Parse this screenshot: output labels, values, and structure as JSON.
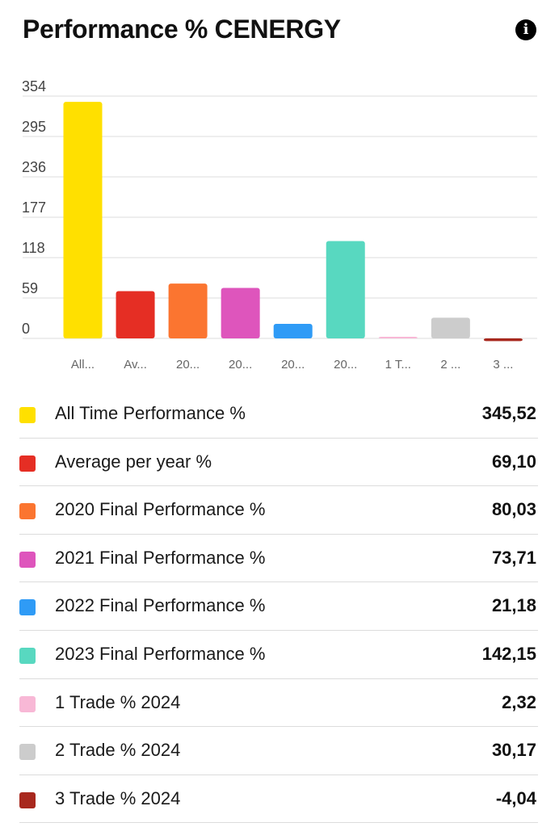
{
  "header": {
    "title": "Performance % CENERGY",
    "info_icon": "info-icon"
  },
  "chart_data": {
    "type": "bar",
    "title": "",
    "xlabel": "",
    "ylabel": "",
    "ylim": [
      -10,
      354
    ],
    "y_ticks": [
      "354",
      "295",
      "236",
      "177",
      "118",
      "59",
      "0"
    ],
    "y_tick_values": [
      354,
      295,
      236,
      177,
      118,
      59,
      0
    ],
    "grid": true,
    "categories": [
      "All...",
      "Av...",
      "20...",
      "20...",
      "20...",
      "20...",
      "1 T...",
      "2 ...",
      "3 ..."
    ],
    "values": [
      345.52,
      69.1,
      80.03,
      73.71,
      21.18,
      142.15,
      2.32,
      30.17,
      -4.04
    ],
    "colors": [
      "#FFE000",
      "#E52E24",
      "#FB7530",
      "#DE55BC",
      "#2F9BF6",
      "#58D8C0",
      "#F8B8D6",
      "#CCCCCC",
      "#A8281E"
    ]
  },
  "legend": [
    {
      "label": "All Time Performance %",
      "value": "345,52",
      "color": "#FFE000"
    },
    {
      "label": "Average per year %",
      "value": "69,10",
      "color": "#E52E24"
    },
    {
      "label": "2020 Final Performance %",
      "value": "80,03",
      "color": "#FB7530"
    },
    {
      "label": "2021 Final Performance %",
      "value": "73,71",
      "color": "#DE55BC"
    },
    {
      "label": "2022 Final Performance %",
      "value": "21,18",
      "color": "#2F9BF6"
    },
    {
      "label": "2023 Final Performance %",
      "value": "142,15",
      "color": "#58D8C0"
    },
    {
      "label": "1 Trade % 2024",
      "value": "2,32",
      "color": "#F8B8D6"
    },
    {
      "label": "2 Trade % 2024",
      "value": "30,17",
      "color": "#CCCCCC"
    },
    {
      "label": "3 Trade % 2024",
      "value": "-4,04",
      "color": "#A8281E"
    }
  ]
}
